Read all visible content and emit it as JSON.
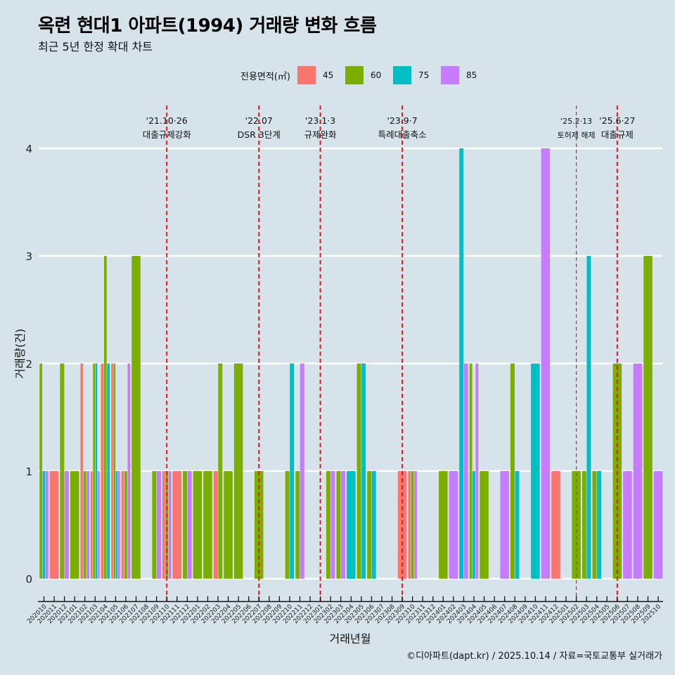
{
  "title": "옥련 현대1 아파트(1994) 거래량 변화 흐름",
  "subtitle": "최근 5년 한정 확대 차트",
  "caption": "©디아파트(dapt.kr) / 2025.10.14 / 자료=국토교통부 실거래가",
  "legend": {
    "title": "전용면적(㎡)",
    "items": [
      {
        "label": "45",
        "color": "#f8766d"
      },
      {
        "label": "60",
        "color": "#7cae00"
      },
      {
        "label": "75",
        "color": "#00bfc4"
      },
      {
        "label": "85",
        "color": "#c77cff"
      }
    ]
  },
  "chart_data": {
    "type": "bar",
    "mode": "dodge",
    "title": "옥련 현대1 아파트(1994) 거래량 변화 흐름",
    "xlabel": "거래년월",
    "ylabel": "거래량(건)",
    "ylim": [
      0,
      4
    ],
    "yticks": [
      "0",
      "1",
      "2",
      "3",
      "4"
    ],
    "grid": true,
    "legend_position": "top",
    "categories": [
      "202010",
      "202011",
      "202012",
      "202101",
      "202102",
      "202103",
      "202104",
      "202105",
      "202106",
      "202107",
      "202108",
      "202109",
      "202110",
      "202111",
      "202112",
      "202201",
      "202202",
      "202203",
      "202204",
      "202205",
      "202206",
      "202207",
      "202208",
      "202209",
      "202210",
      "202211",
      "202212",
      "202301",
      "202302",
      "202303",
      "202304",
      "202305",
      "202306",
      "202307",
      "202308",
      "202309",
      "202310",
      "202311",
      "202312",
      "202401",
      "202402",
      "202403",
      "202404",
      "202405",
      "202406",
      "202407",
      "202408",
      "202409",
      "202410",
      "202411",
      "202412",
      "202501",
      "202502",
      "202503",
      "202504",
      "202505",
      "202506",
      "202507",
      "202508",
      "202509",
      "202510"
    ],
    "series": [
      {
        "name": "45",
        "values": [
          0,
          1,
          0,
          0,
          2,
          1,
          2,
          2,
          1,
          0,
          0,
          0,
          1,
          1,
          0,
          0,
          0,
          1,
          0,
          0,
          0,
          0,
          0,
          0,
          0,
          0,
          0,
          0,
          0,
          0,
          0,
          0,
          0,
          0,
          0,
          1,
          1,
          0,
          0,
          0,
          0,
          0,
          0,
          0,
          0,
          0,
          0,
          0,
          0,
          0,
          1,
          0,
          0,
          0,
          0,
          0,
          0,
          0,
          0,
          0,
          0
        ]
      },
      {
        "name": "60",
        "values": [
          2,
          0,
          2,
          1,
          1,
          2,
          3,
          2,
          1,
          3,
          0,
          1,
          1,
          0,
          1,
          1,
          1,
          2,
          1,
          2,
          0,
          1,
          0,
          0,
          1,
          1,
          0,
          0,
          1,
          1,
          0,
          2,
          1,
          0,
          0,
          0,
          1,
          0,
          0,
          1,
          0,
          0,
          2,
          1,
          0,
          0,
          2,
          0,
          0,
          0,
          0,
          0,
          1,
          1,
          1,
          0,
          2,
          0,
          0,
          3,
          0
        ]
      },
      {
        "name": "75",
        "values": [
          1,
          0,
          0,
          0,
          0,
          2,
          2,
          1,
          0,
          0,
          0,
          0,
          0,
          0,
          0,
          0,
          0,
          0,
          0,
          0,
          0,
          0,
          0,
          0,
          2,
          0,
          0,
          0,
          0,
          0,
          1,
          2,
          1,
          0,
          0,
          0,
          0,
          0,
          0,
          0,
          0,
          4,
          1,
          0,
          0,
          0,
          1,
          0,
          2,
          0,
          0,
          0,
          0,
          3,
          1,
          0,
          0,
          0,
          0,
          0,
          0
        ]
      },
      {
        "name": "85",
        "values": [
          1,
          0,
          1,
          0,
          1,
          1,
          0,
          1,
          2,
          0,
          0,
          1,
          1,
          0,
          1,
          0,
          0,
          0,
          0,
          0,
          0,
          0,
          0,
          0,
          0,
          2,
          0,
          0,
          1,
          1,
          0,
          0,
          0,
          0,
          0,
          0,
          1,
          0,
          0,
          0,
          1,
          2,
          2,
          0,
          0,
          1,
          0,
          0,
          0,
          4,
          0,
          0,
          0,
          0,
          0,
          0,
          0,
          1,
          2,
          0,
          1
        ]
      }
    ],
    "annotations": [
      {
        "month": "202110",
        "date": "'21.10·26",
        "label": "대출규제강화",
        "style": "bold"
      },
      {
        "month": "202207",
        "date": "'22.07",
        "label": "DSR 3단계",
        "style": "bold"
      },
      {
        "month": "202301",
        "date": "'23.1·3",
        "label": "규제완화",
        "style": "bold"
      },
      {
        "month": "202309",
        "date": "'23.9·7",
        "label": "특례대출축소",
        "style": "bold"
      },
      {
        "month": "202502",
        "date": "'25.2·13",
        "label": "토허제 해제",
        "style": "thin"
      },
      {
        "month": "202506",
        "date": "'25.6·27",
        "label": "대출규제",
        "style": "bold"
      }
    ]
  }
}
